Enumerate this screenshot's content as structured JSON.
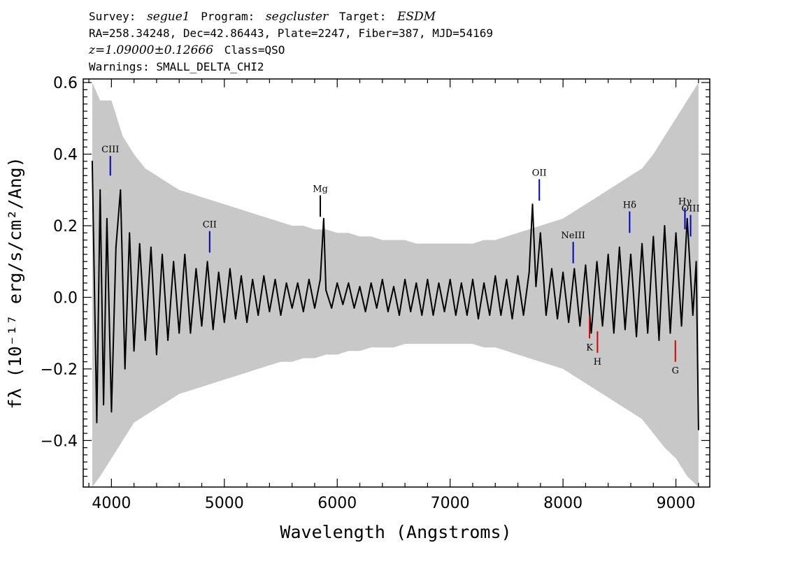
{
  "header": {
    "survey_label": "Survey:",
    "survey": "segue1",
    "program_label": "Program:",
    "program": "segcluster",
    "target_label": "Target:",
    "target": "ESDM",
    "coords": "RA=258.34248, Dec=42.86443, Plate=2247, Fiber=387, MJD=54169",
    "redshift": "z=1.09000±0.12666",
    "class": "Class=QSO",
    "warnings": "Warnings: SMALL_DELTA_CHI2"
  },
  "chart_data": {
    "type": "line",
    "xlabel": "Wavelength (Angstroms)",
    "ylabel": "fλ (10⁻¹⁷ erg/s/cm²/Ang)",
    "xlim": [
      3750,
      9300
    ],
    "ylim": [
      -0.53,
      0.61
    ],
    "x_ticks": [
      {
        "value": 4000,
        "label": "4000"
      },
      {
        "value": 5000,
        "label": "5000"
      },
      {
        "value": 6000,
        "label": "6000"
      },
      {
        "value": 7000,
        "label": "7000"
      },
      {
        "value": 8000,
        "label": "8000"
      },
      {
        "value": 9000,
        "label": "9000"
      }
    ],
    "y_ticks": [
      {
        "value": -0.4,
        "label": "−0.4"
      },
      {
        "value": -0.2,
        "label": "−0.2"
      },
      {
        "value": 0.0,
        "label": "0.0"
      },
      {
        "value": 0.2,
        "label": "0.2"
      },
      {
        "value": 0.4,
        "label": "0.4"
      },
      {
        "value": 0.6,
        "label": "0.6"
      }
    ],
    "series": [
      {
        "role": "flux",
        "color": "#000000",
        "x": [
          3830,
          3870,
          3900,
          3930,
          3960,
          4000,
          4040,
          4080,
          4120,
          4160,
          4200,
          4250,
          4300,
          4350,
          4400,
          4450,
          4500,
          4550,
          4600,
          4650,
          4700,
          4750,
          4800,
          4850,
          4900,
          4950,
          5000,
          5050,
          5100,
          5150,
          5200,
          5250,
          5300,
          5350,
          5400,
          5450,
          5500,
          5550,
          5600,
          5650,
          5700,
          5750,
          5800,
          5850,
          5880,
          5900,
          5950,
          6000,
          6050,
          6100,
          6150,
          6200,
          6250,
          6300,
          6350,
          6400,
          6450,
          6500,
          6550,
          6600,
          6650,
          6700,
          6750,
          6800,
          6850,
          6900,
          6950,
          7000,
          7050,
          7100,
          7150,
          7200,
          7250,
          7300,
          7350,
          7400,
          7450,
          7500,
          7550,
          7600,
          7650,
          7700,
          7730,
          7760,
          7800,
          7850,
          7900,
          7950,
          8000,
          8050,
          8100,
          8150,
          8200,
          8250,
          8300,
          8350,
          8400,
          8450,
          8500,
          8550,
          8600,
          8650,
          8700,
          8750,
          8800,
          8850,
          8900,
          8950,
          9000,
          9050,
          9100,
          9150,
          9180,
          9200
        ],
        "y": [
          0.38,
          -0.35,
          0.3,
          -0.3,
          0.22,
          -0.32,
          0.14,
          0.3,
          -0.2,
          0.18,
          -0.15,
          0.15,
          -0.12,
          0.14,
          -0.16,
          0.12,
          -0.12,
          0.1,
          -0.1,
          0.12,
          -0.1,
          0.08,
          -0.08,
          0.1,
          -0.09,
          0.07,
          -0.07,
          0.08,
          -0.06,
          0.06,
          -0.07,
          0.05,
          -0.05,
          0.06,
          -0.04,
          0.05,
          -0.05,
          0.04,
          -0.03,
          0.04,
          -0.04,
          0.05,
          -0.03,
          0.05,
          0.22,
          0.02,
          -0.03,
          0.04,
          -0.02,
          0.04,
          -0.03,
          0.03,
          -0.04,
          0.04,
          -0.03,
          0.05,
          -0.04,
          0.03,
          -0.05,
          0.05,
          -0.04,
          0.04,
          -0.05,
          0.05,
          -0.05,
          0.04,
          -0.04,
          0.05,
          -0.05,
          0.04,
          -0.05,
          0.05,
          -0.06,
          0.04,
          -0.05,
          0.06,
          -0.05,
          0.05,
          -0.06,
          0.06,
          -0.05,
          0.07,
          0.26,
          0.03,
          0.18,
          -0.05,
          0.08,
          -0.06,
          0.07,
          -0.07,
          0.08,
          -0.08,
          0.09,
          -0.1,
          0.1,
          -0.08,
          0.12,
          -0.1,
          0.14,
          -0.09,
          0.12,
          -0.11,
          0.15,
          -0.1,
          0.17,
          -0.12,
          0.2,
          -0.1,
          0.18,
          -0.08,
          0.22,
          -0.05,
          0.1,
          -0.37
        ]
      },
      {
        "role": "error",
        "color": "#c8c8c8",
        "x": [
          3830,
          3900,
          4000,
          4100,
          4200,
          4300,
          4400,
          4500,
          4600,
          4700,
          4800,
          4900,
          5000,
          5100,
          5200,
          5300,
          5400,
          5500,
          5600,
          5700,
          5800,
          5900,
          6000,
          6100,
          6200,
          6300,
          6400,
          6500,
          6600,
          6700,
          6800,
          6900,
          7000,
          7100,
          7200,
          7300,
          7400,
          7500,
          7600,
          7700,
          7800,
          7900,
          8000,
          8100,
          8200,
          8300,
          8400,
          8500,
          8600,
          8700,
          8800,
          8900,
          9000,
          9100,
          9200
        ],
        "upper": [
          0.6,
          0.55,
          0.55,
          0.45,
          0.4,
          0.36,
          0.34,
          0.32,
          0.3,
          0.29,
          0.28,
          0.27,
          0.26,
          0.25,
          0.24,
          0.23,
          0.22,
          0.21,
          0.2,
          0.2,
          0.19,
          0.19,
          0.18,
          0.18,
          0.17,
          0.17,
          0.16,
          0.16,
          0.16,
          0.15,
          0.15,
          0.15,
          0.15,
          0.15,
          0.15,
          0.16,
          0.16,
          0.17,
          0.18,
          0.19,
          0.2,
          0.21,
          0.22,
          0.24,
          0.26,
          0.28,
          0.3,
          0.32,
          0.34,
          0.36,
          0.4,
          0.45,
          0.5,
          0.55,
          0.6
        ],
        "lower": [
          -0.53,
          -0.5,
          -0.45,
          -0.4,
          -0.35,
          -0.33,
          -0.31,
          -0.29,
          -0.27,
          -0.26,
          -0.25,
          -0.24,
          -0.23,
          -0.22,
          -0.21,
          -0.2,
          -0.19,
          -0.18,
          -0.18,
          -0.17,
          -0.17,
          -0.16,
          -0.16,
          -0.15,
          -0.15,
          -0.14,
          -0.14,
          -0.14,
          -0.13,
          -0.13,
          -0.13,
          -0.13,
          -0.13,
          -0.13,
          -0.13,
          -0.14,
          -0.14,
          -0.15,
          -0.16,
          -0.17,
          -0.18,
          -0.19,
          -0.2,
          -0.22,
          -0.24,
          -0.26,
          -0.28,
          -0.3,
          -0.32,
          -0.34,
          -0.38,
          -0.42,
          -0.45,
          -0.5,
          -0.53
        ]
      }
    ],
    "line_markers": [
      {
        "label": "CIII",
        "x": 3990,
        "y_top": 0.395,
        "y_bottom": 0.34,
        "color": "#0000cc"
      },
      {
        "label": "CII",
        "x": 4870,
        "y_top": 0.185,
        "y_bottom": 0.125,
        "color": "#0000cc"
      },
      {
        "label": "Mg",
        "x": 5850,
        "y_top": 0.285,
        "y_bottom": 0.225,
        "color": "#000000"
      },
      {
        "label": "OII",
        "x": 7790,
        "y_top": 0.33,
        "y_bottom": 0.27,
        "color": "#0000cc"
      },
      {
        "label": "NeIII",
        "x": 8090,
        "y_top": 0.155,
        "y_bottom": 0.095,
        "color": "#0000cc"
      },
      {
        "label": "Hδ",
        "x": 8590,
        "y_top": 0.24,
        "y_bottom": 0.18,
        "color": "#0000cc"
      },
      {
        "label": "Hγ",
        "x": 9080,
        "y_top": 0.25,
        "y_bottom": 0.19,
        "color": "#0000cc"
      },
      {
        "label": "OIII",
        "x": 9130,
        "y_top": 0.23,
        "y_bottom": 0.17,
        "color": "#0000cc"
      },
      {
        "label": "K",
        "x": 8235,
        "y_top": -0.055,
        "y_bottom": -0.115,
        "color": "#dd0000"
      },
      {
        "label": "H",
        "x": 8305,
        "y_top": -0.095,
        "y_bottom": -0.155,
        "color": "#dd0000"
      },
      {
        "label": "G",
        "x": 8995,
        "y_top": -0.12,
        "y_bottom": -0.18,
        "color": "#dd0000"
      }
    ]
  }
}
